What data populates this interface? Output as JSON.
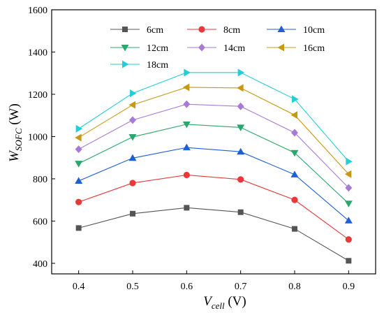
{
  "chart_data": {
    "type": "line",
    "x": [
      0.4,
      0.5,
      0.6,
      0.7,
      0.8,
      0.9
    ],
    "x_ticks": [
      "0.4",
      "0.5",
      "0.6",
      "0.7",
      "0.8",
      "0.9"
    ],
    "y_ticks": [
      "400",
      "600",
      "800",
      "1000",
      "1200",
      "1400",
      "1600"
    ],
    "xlim": [
      0.35,
      0.95
    ],
    "ylim": [
      350,
      1600
    ],
    "xlabel": {
      "main": "V",
      "sub": "cell",
      "unit": " (V)"
    },
    "ylabel": {
      "main": "W",
      "sub": "SOFC",
      "unit": " (W)"
    },
    "grid": false,
    "legend_position": "top",
    "series": [
      {
        "name": "6cm",
        "color": "#555555",
        "marker": "square",
        "values": [
          567,
          635,
          663,
          642,
          563,
          412
        ]
      },
      {
        "name": "8cm",
        "color": "#e8383a",
        "marker": "circle",
        "values": [
          690,
          780,
          818,
          797,
          700,
          513
        ]
      },
      {
        "name": "10cm",
        "color": "#1f5fd6",
        "marker": "triangle-up",
        "values": [
          790,
          898,
          948,
          928,
          820,
          602
        ]
      },
      {
        "name": "12cm",
        "color": "#2aa86b",
        "marker": "triangle-down",
        "values": [
          872,
          998,
          1058,
          1043,
          923,
          683
        ]
      },
      {
        "name": "14cm",
        "color": "#a77ad6",
        "marker": "diamond",
        "values": [
          940,
          1078,
          1153,
          1143,
          1018,
          757
        ]
      },
      {
        "name": "16cm",
        "color": "#c89812",
        "marker": "triangle-left",
        "values": [
          995,
          1150,
          1233,
          1230,
          1102,
          822
        ]
      },
      {
        "name": "18cm",
        "color": "#22cfd6",
        "marker": "triangle-right",
        "values": [
          1037,
          1205,
          1303,
          1303,
          1177,
          882
        ]
      }
    ]
  }
}
